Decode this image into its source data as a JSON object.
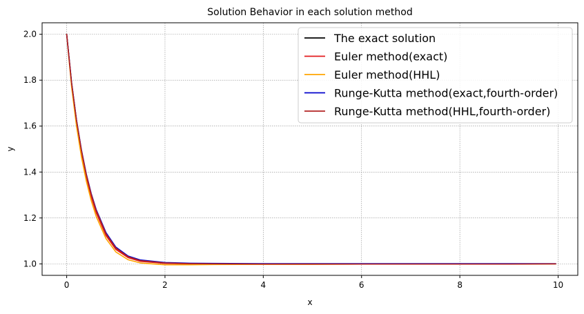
{
  "chart_data": {
    "type": "line",
    "title": "Solution Behavior in each solution method",
    "xlabel": "x",
    "ylabel": "y",
    "xlim": [
      -0.5,
      10.4
    ],
    "ylim": [
      0.95,
      2.05
    ],
    "xticks": [
      0,
      2,
      4,
      6,
      8,
      10
    ],
    "xtick_labels": [
      "0",
      "2",
      "4",
      "6",
      "8",
      "10"
    ],
    "yticks": [
      1.0,
      1.2,
      1.4,
      1.6,
      1.8,
      2.0
    ],
    "ytick_labels": [
      "1.0",
      "1.2",
      "1.4",
      "1.6",
      "1.8",
      "2.0"
    ],
    "grid": true,
    "legend_position": "top-right",
    "series": [
      {
        "name": "The exact solution",
        "color": "#000000",
        "x": [
          0,
          0.1,
          0.2,
          0.3,
          0.4,
          0.5,
          0.6,
          0.8,
          1.0,
          1.25,
          1.5,
          2.0,
          2.5,
          3.0,
          4.0,
          5.0,
          6.0,
          7.0,
          8.0,
          9.0,
          9.95
        ],
        "y": [
          2.0,
          1.787,
          1.624,
          1.493,
          1.387,
          1.301,
          1.232,
          1.131,
          1.069,
          1.031,
          1.014,
          1.003,
          1.001,
          1.0,
          1.0,
          1.0,
          1.0,
          1.0,
          1.0,
          1.0,
          1.0
        ]
      },
      {
        "name": "Euler method(exact)",
        "color": "#e31a1c",
        "x": [
          0,
          0.1,
          0.2,
          0.3,
          0.4,
          0.5,
          0.6,
          0.8,
          1.0,
          1.25,
          1.5,
          2.0,
          2.5,
          3.0,
          4.0,
          5.0,
          6.0,
          7.0,
          8.0,
          9.0,
          9.95
        ],
        "y": [
          2.0,
          1.78,
          1.615,
          1.484,
          1.378,
          1.292,
          1.223,
          1.123,
          1.063,
          1.027,
          1.011,
          1.002,
          1.0,
          1.0,
          1.0,
          1.0,
          1.0,
          1.0,
          1.0,
          1.0,
          1.0
        ]
      },
      {
        "name": "Euler method(HHL)",
        "color": "#ffa500",
        "x": [
          0,
          0.1,
          0.2,
          0.3,
          0.4,
          0.5,
          0.6,
          0.8,
          1.0,
          1.25,
          1.5,
          2.0,
          2.5,
          3.0,
          4.0,
          5.0,
          6.0,
          7.0,
          8.0,
          9.0,
          9.95
        ],
        "y": [
          2.0,
          1.77,
          1.6,
          1.466,
          1.36,
          1.275,
          1.207,
          1.11,
          1.052,
          1.018,
          1.004,
          0.996,
          0.996,
          0.997,
          0.998,
          0.998,
          0.999,
          0.999,
          0.999,
          0.999,
          1.0
        ]
      },
      {
        "name": "Runge-Kutta method(exact,fourth-order)",
        "color": "#0000cc",
        "x": [
          0,
          0.1,
          0.2,
          0.3,
          0.4,
          0.5,
          0.6,
          0.8,
          1.0,
          1.25,
          1.5,
          2.0,
          2.5,
          3.0,
          4.0,
          5.0,
          6.0,
          7.0,
          8.0,
          9.0,
          9.95
        ],
        "y": [
          2.0,
          1.79,
          1.627,
          1.497,
          1.391,
          1.306,
          1.237,
          1.136,
          1.073,
          1.034,
          1.017,
          1.006,
          1.003,
          1.002,
          1.001,
          1.001,
          1.001,
          1.001,
          1.001,
          1.001,
          1.001
        ]
      },
      {
        "name": "Runge-Kutta method(HHL,fourth-order)",
        "color": "#b22222",
        "x": [
          0,
          0.1,
          0.2,
          0.3,
          0.4,
          0.5,
          0.6,
          0.8,
          1.0,
          1.25,
          1.5,
          2.0,
          2.5,
          3.0,
          4.0,
          5.0,
          6.0,
          7.0,
          8.0,
          9.0,
          9.95
        ],
        "y": [
          2.0,
          1.788,
          1.625,
          1.494,
          1.388,
          1.302,
          1.233,
          1.131,
          1.069,
          1.031,
          1.014,
          1.004,
          1.001,
          1.0,
          0.999,
          0.999,
          0.999,
          0.999,
          0.999,
          0.999,
          1.0
        ]
      }
    ]
  }
}
